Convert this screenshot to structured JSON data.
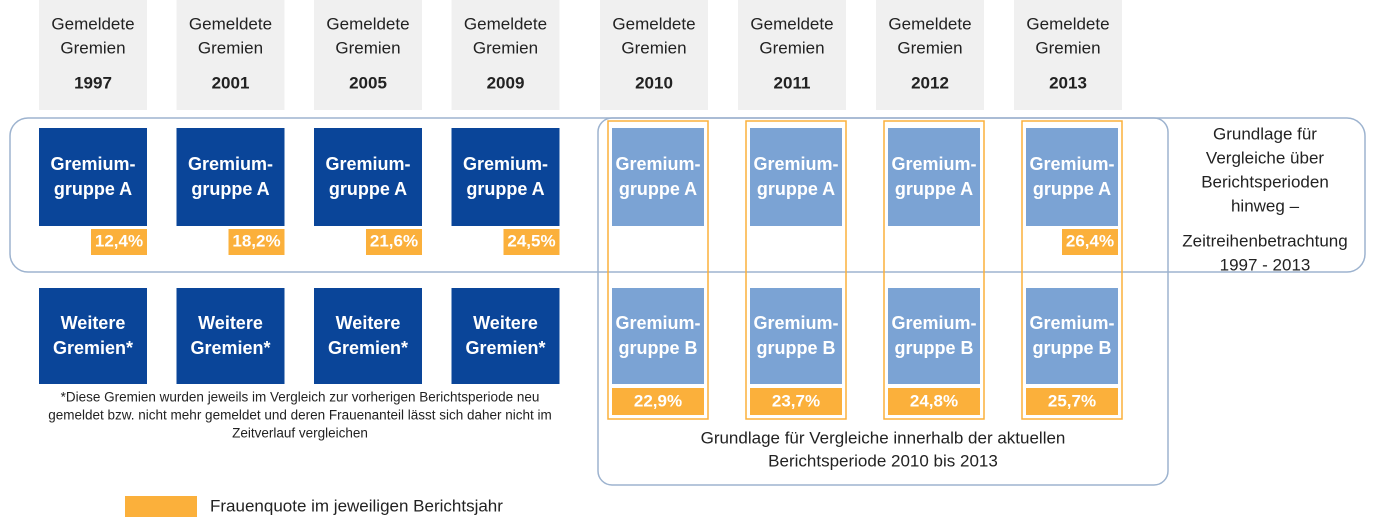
{
  "columns": [
    {
      "header": [
        "Gemeldete",
        "Gremien"
      ],
      "year": "1997",
      "upper": [
        "Gremium-",
        "gruppe  A"
      ],
      "upper_share": "12,4%",
      "lower": [
        "Weitere",
        "Gremien*"
      ]
    },
    {
      "header": [
        "Gemeldete",
        "Gremien"
      ],
      "year": "2001",
      "upper": [
        "Gremium-",
        "gruppe  A"
      ],
      "upper_share": "18,2%",
      "lower": [
        "Weitere",
        "Gremien*"
      ]
    },
    {
      "header": [
        "Gemeldete",
        "Gremien"
      ],
      "year": "2005",
      "upper": [
        "Gremium-",
        "gruppe  A"
      ],
      "upper_share": "21,6%",
      "lower": [
        "Weitere",
        "Gremien*"
      ]
    },
    {
      "header": [
        "Gemeldete",
        "Gremien"
      ],
      "year": "2009",
      "upper": [
        "Gremium-",
        "gruppe  A"
      ],
      "upper_share": "24,5%",
      "lower": [
        "Weitere",
        "Gremien*"
      ]
    },
    {
      "header": [
        "Gemeldete",
        "Gremien"
      ],
      "year": "2010",
      "upper": [
        "Gremium-",
        "gruppe  A"
      ],
      "lower": [
        "Gremium-",
        "gruppe  B"
      ],
      "lower_share": "22,9%"
    },
    {
      "header": [
        "Gemeldete",
        "Gremien"
      ],
      "year": "2011",
      "upper": [
        "Gremium-",
        "gruppe  A"
      ],
      "lower": [
        "Gremium-",
        "gruppe  B"
      ],
      "lower_share": "23,7%"
    },
    {
      "header": [
        "Gemeldete",
        "Gremien"
      ],
      "year": "2012",
      "upper": [
        "Gremium-",
        "gruppe  A"
      ],
      "lower": [
        "Gremium-",
        "gruppe  B"
      ],
      "lower_share": "24,8%"
    },
    {
      "header": [
        "Gemeldete",
        "Gremien"
      ],
      "year": "2013",
      "upper": [
        "Gremium-",
        "gruppe  A"
      ],
      "upper_share": "26,4%",
      "lower": [
        "Gremium-",
        "gruppe  B"
      ],
      "lower_share": "25,7%"
    }
  ],
  "timeseries_note": [
    "Grundlage für",
    "Vergleiche über",
    "Berichtsperioden",
    "hinweg –",
    "Zeitreihenbetrachtung",
    "1997 - 2013"
  ],
  "period_note": [
    "Grundlage für Vergleiche innerhalb der aktuellen",
    "Berichtsperiode 2010 bis 2013"
  ],
  "footnote": [
    "*Diese Gremien wurden jeweils im Vergleich zur vorherigen Berichtsperiode neu",
    "gemeldet bzw. nicht mehr gemeldet und deren Frauenanteil lässt sich daher nicht im",
    "Zeitverlauf vergleichen"
  ],
  "legend": "Frauenquote im jeweiligen Berichtsjahr"
}
